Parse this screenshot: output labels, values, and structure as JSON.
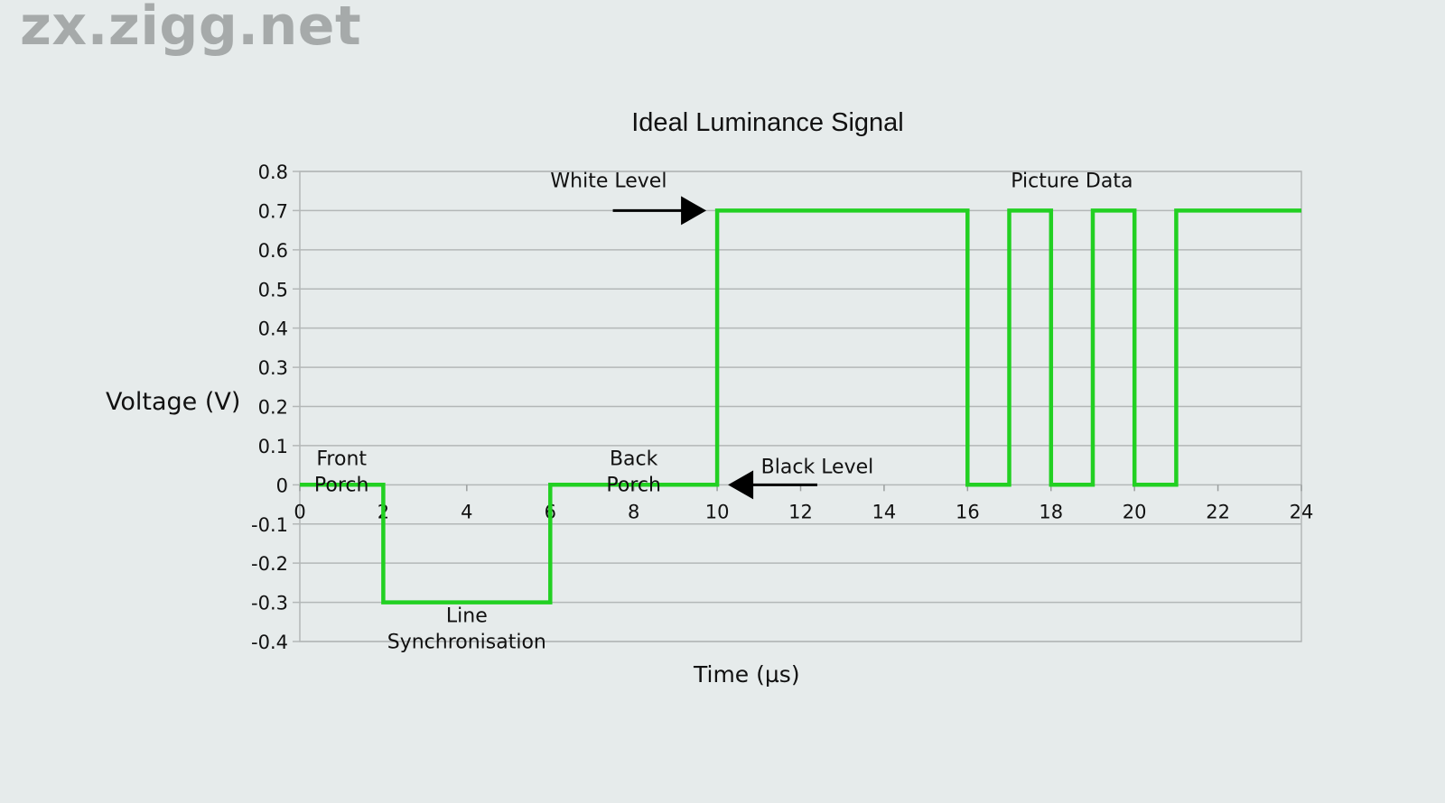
{
  "watermark": "zx.zigg.net",
  "chart_data": {
    "type": "line",
    "title": "Ideal Luminance Signal",
    "xlabel": "Time (µs)",
    "ylabel": "Voltage (V)",
    "xlim": [
      0,
      24
    ],
    "ylim": [
      -0.4,
      0.8
    ],
    "x_ticks": [
      "0",
      "2",
      "4",
      "6",
      "8",
      "10",
      "12",
      "14",
      "16",
      "18",
      "20",
      "22",
      "24"
    ],
    "y_ticks": [
      "0.8",
      "0.7",
      "0.6",
      "0.5",
      "0.4",
      "0.3",
      "0.2",
      "0.1",
      "0",
      "-0.1",
      "-0.2",
      "-0.3",
      "-0.4"
    ],
    "grid": true,
    "step_signal": {
      "color": "#22d022",
      "points": [
        [
          0,
          0
        ],
        [
          2,
          0
        ],
        [
          2,
          -0.3
        ],
        [
          6,
          -0.3
        ],
        [
          6,
          0
        ],
        [
          10,
          0
        ],
        [
          10,
          0.7
        ],
        [
          16,
          0.7
        ],
        [
          16,
          0
        ],
        [
          17,
          0
        ],
        [
          17,
          0.7
        ],
        [
          18,
          0.7
        ],
        [
          18,
          0
        ],
        [
          19,
          0
        ],
        [
          19,
          0.7
        ],
        [
          20,
          0.7
        ],
        [
          20,
          0
        ],
        [
          21,
          0
        ],
        [
          21,
          0.7
        ],
        [
          24,
          0.7
        ]
      ]
    },
    "annotations": [
      {
        "lines": [
          "Front",
          "Porch"
        ],
        "x": 1,
        "y": 0.05
      },
      {
        "lines": [
          "Line",
          "Synchronisation"
        ],
        "x": 4,
        "y": -0.35
      },
      {
        "lines": [
          "Back",
          "Porch"
        ],
        "x": 8,
        "y": 0.05
      },
      {
        "lines": [
          "White Level"
        ],
        "x": 7.4,
        "y": 0.76,
        "arrow_from": [
          7.5,
          0.7
        ],
        "arrow_to": [
          10,
          0.7
        ]
      },
      {
        "lines": [
          "Black Level"
        ],
        "x": 12.4,
        "y": 0.03,
        "arrow_from": [
          12.4,
          0
        ],
        "arrow_to": [
          10,
          0
        ]
      },
      {
        "lines": [
          "Picture Data"
        ],
        "x": 18.5,
        "y": 0.76
      }
    ]
  }
}
